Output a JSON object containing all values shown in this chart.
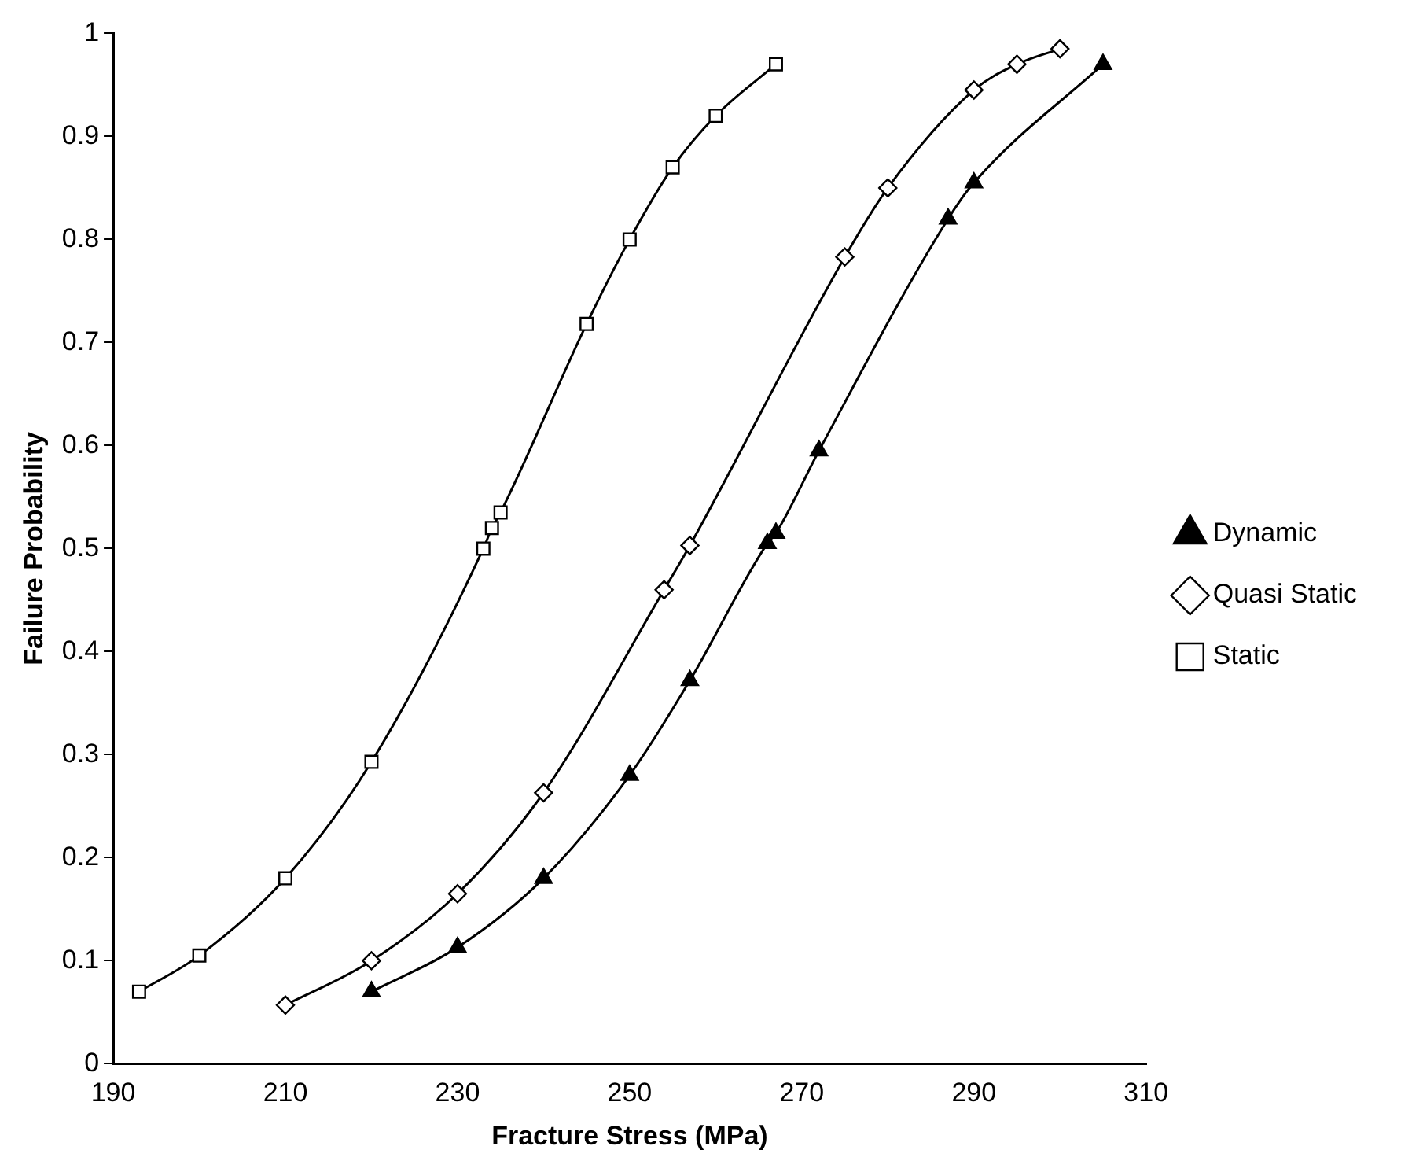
{
  "chart_data": {
    "type": "line",
    "xlabel": "Fracture Stress (MPa)",
    "ylabel": "Failure Probability",
    "xlim": [
      190,
      310
    ],
    "xticks": [
      190,
      210,
      230,
      250,
      270,
      290,
      310
    ],
    "ylim": [
      0,
      1
    ],
    "yticks": [
      0,
      0.1,
      0.2,
      0.3,
      0.4,
      0.5,
      0.6,
      0.7,
      0.8,
      0.9,
      1
    ],
    "grid": false,
    "legend": "right",
    "line_style": "solid",
    "series": [
      {
        "name": "Dynamic",
        "color": "#000000",
        "marker": "triangle",
        "x": [
          220,
          230,
          240,
          250,
          257,
          266,
          267,
          272,
          287,
          290,
          305
        ],
        "values": [
          0.07,
          0.113,
          0.18,
          0.28,
          0.372,
          0.505,
          0.515,
          0.595,
          0.82,
          0.855,
          0.97
        ]
      },
      {
        "name": "Quasi Static",
        "color": "#000000",
        "marker": "diamond",
        "x": [
          210,
          220,
          230,
          240,
          254,
          257,
          275,
          280,
          290,
          295,
          300
        ],
        "values": [
          0.057,
          0.1,
          0.165,
          0.263,
          0.46,
          0.503,
          0.783,
          0.85,
          0.945,
          0.97,
          0.985
        ]
      },
      {
        "name": "Static",
        "color": "#000000",
        "marker": "square",
        "x": [
          193,
          200,
          210,
          220,
          233,
          234,
          235,
          245,
          250,
          255,
          260,
          267
        ],
        "values": [
          0.07,
          0.105,
          0.18,
          0.293,
          0.5,
          0.52,
          0.535,
          0.718,
          0.8,
          0.87,
          0.92,
          0.97
        ]
      }
    ]
  }
}
